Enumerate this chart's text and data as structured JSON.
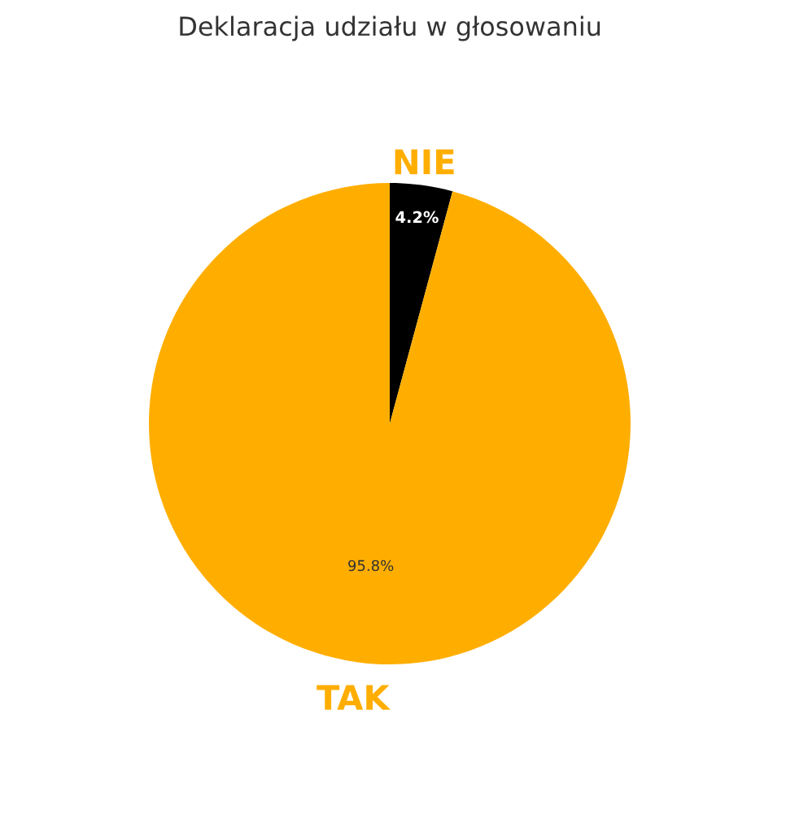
{
  "chart_data": {
    "type": "pie",
    "title": "Deklaracja udziału w głosowaniu",
    "categories": [
      "NIE",
      "TAK"
    ],
    "values": [
      4.2,
      95.8
    ],
    "colors": [
      "#000000",
      "#ffae00"
    ],
    "value_labels": [
      "4.2%",
      "95.8%"
    ],
    "legend": false
  }
}
